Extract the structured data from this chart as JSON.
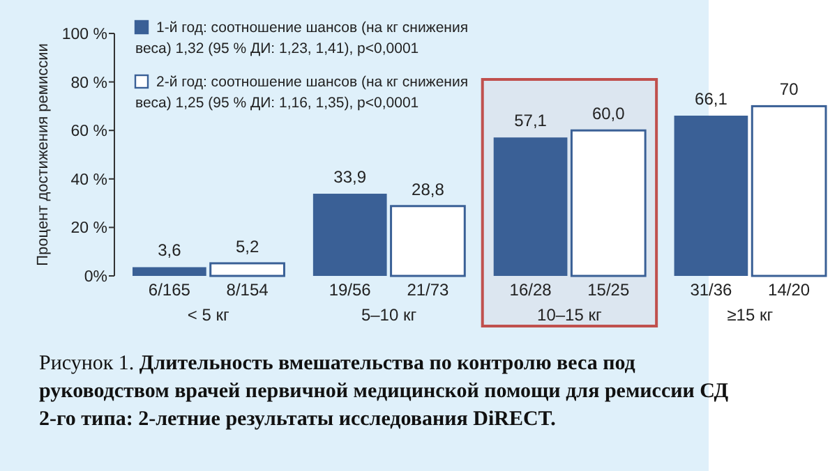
{
  "chart_data": {
    "type": "bar",
    "title": "Длительность вмешательства по контролю веса под руководством врачей первичной медицинской помощи для ремиссии СД 2-го типа: 2-летние результаты исследования DiRECT.",
    "ylabel": "Процент достижения ремиссии",
    "categories": [
      "< 5 кг",
      "5–10 кг",
      "10–15 кг",
      "≥15 кг"
    ],
    "series": [
      {
        "name": "1-й год: соотношение шансов (на кг снижения веса) 1,32 (95 % ДИ: 1,23, 1,41), p<0,0001",
        "color": "#3a6096",
        "values": [
          3.6,
          33.9,
          57.1,
          66.1
        ],
        "value_labels": [
          "3,6",
          "33,9",
          "57,1",
          "66,1"
        ]
      },
      {
        "name": "2-й год: соотношение шансов (на кг снижения веса) 1,25 (95 % ДИ: 1,16, 1,35), p<0,0001",
        "color": "#ffffff",
        "values": [
          5.2,
          28.8,
          60.0,
          70
        ],
        "value_labels": [
          "5,2",
          "28,8",
          "60,0",
          "70"
        ]
      }
    ],
    "ylim": [
      0,
      100
    ],
    "yticks": [
      {
        "value": 0,
        "label": "0%"
      },
      {
        "value": 20,
        "label": "20 %"
      },
      {
        "value": 40,
        "label": "40 %"
      },
      {
        "value": 60,
        "label": "60 %"
      },
      {
        "value": 80,
        "label": "80 %"
      },
      {
        "value": 100,
        "label": "100 %"
      }
    ],
    "bands": [
      {
        "axis": "x",
        "from": "10–15 кг",
        "to": "10–15 кг",
        "color": "#c0504d"
      }
    ],
    "legend": "top left",
    "grid": false,
    "annotations": [
      "Рисунок 1.",
      {
        "text": "6/165",
        "x": "< 5 кг",
        "y": 0
      },
      {
        "text": "8/154",
        "x": "< 5 кг",
        "y": 0
      },
      {
        "text": "19/56",
        "x": "5–10 кг",
        "y": 0
      },
      {
        "text": "21/73",
        "x": "5–10 кг",
        "y": 0
      },
      {
        "text": "16/28",
        "x": "10–15 кг",
        "y": 0
      },
      {
        "text": "15/25",
        "x": "10–15 кг",
        "y": 0
      },
      {
        "text": "31/36",
        "x": "≥15 кг",
        "y": 0
      },
      {
        "text": "14/20",
        "x": "≥15 кг",
        "y": 0
      }
    ]
  }
}
